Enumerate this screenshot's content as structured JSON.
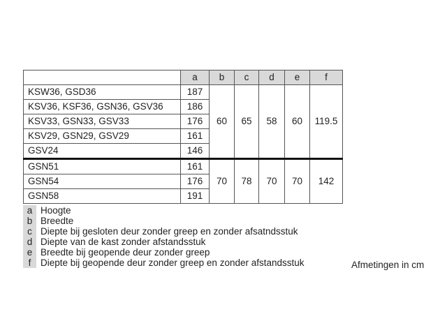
{
  "table": {
    "headers": [
      "",
      "a",
      "b",
      "c",
      "d",
      "e",
      "f"
    ],
    "group1": {
      "rows": [
        [
          "KSW36, GSD36",
          "187"
        ],
        [
          "KSV36, KSF36, GSN36, GSV36",
          "186"
        ],
        [
          "KSV33, GSN33, GSV33",
          "176"
        ],
        [
          "KSV29, GSN29, GSV29",
          "161"
        ],
        [
          "GSV24",
          "146"
        ]
      ],
      "shared": [
        "60",
        "65",
        "58",
        "60",
        "119.5"
      ]
    },
    "group2": {
      "rows": [
        [
          "GSN51",
          "161"
        ],
        [
          "GSN54",
          "176"
        ],
        [
          "GSN58",
          "191"
        ]
      ],
      "shared": [
        "70",
        "78",
        "70",
        "70",
        "142"
      ]
    }
  },
  "legend": [
    {
      "key": "a",
      "text": "Hoogte"
    },
    {
      "key": "b",
      "text": "Breedte"
    },
    {
      "key": "c",
      "text": "Diepte bij gesloten deur zonder greep en zonder afsatndsstuk"
    },
    {
      "key": "d",
      "text": "Diepte van de kast zonder afstandsstuk"
    },
    {
      "key": "e",
      "text": "Breedte bij geopende deur zonder greep"
    },
    {
      "key": "f",
      "text": "Diepte bij geopende deur zonder greep en zonder afstandsstuk"
    }
  ],
  "unit_label": "Afmetingen in cm",
  "colors": {
    "header_fill": "#d9d9d9"
  }
}
